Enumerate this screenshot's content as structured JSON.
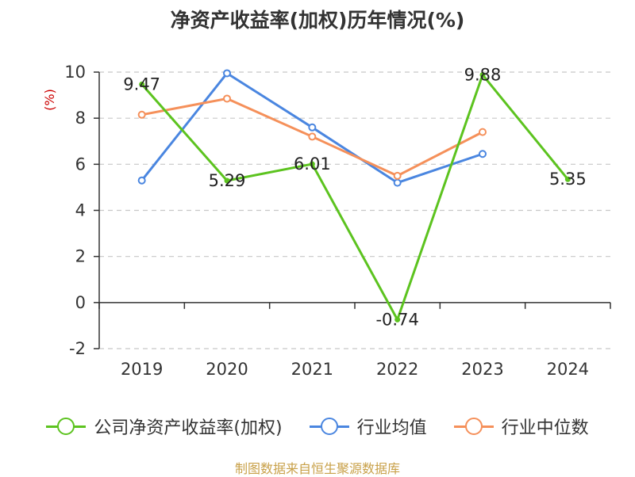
{
  "title": "净资产收益率(加权)历年情况(%)",
  "source": "制图数据来自恒生聚源数据库",
  "colors": {
    "company": "#5cc31f",
    "industry_avg": "#4a86e0",
    "industry_median": "#f5905a",
    "ylabel": "#cc0000",
    "grid": "#c8c8c8",
    "axis": "#333333"
  },
  "chart_data": {
    "type": "line",
    "title": "净资产收益率(加权)历年情况(%)",
    "xlabel": "",
    "ylabel": "(%)",
    "categories": [
      "2019",
      "2020",
      "2021",
      "2022",
      "2023",
      "2024"
    ],
    "ylim": [
      -2,
      10
    ],
    "yticks": [
      -2,
      0,
      2,
      4,
      6,
      8,
      10
    ],
    "grid": true,
    "legend_position": "bottom",
    "series": [
      {
        "name": "公司净资产收益率(加权)",
        "key": "company",
        "values": [
          9.47,
          5.29,
          6.01,
          -0.74,
          9.88,
          5.35
        ],
        "labels": [
          "9.47",
          "5.29",
          "6.01",
          "-0.74",
          "9.88",
          "5.35"
        ]
      },
      {
        "name": "行业均值",
        "key": "industry_avg",
        "values": [
          5.3,
          9.95,
          7.6,
          5.2,
          6.45,
          null
        ]
      },
      {
        "name": "行业中位数",
        "key": "industry_median",
        "values": [
          8.15,
          8.85,
          7.2,
          5.5,
          7.4,
          null
        ]
      }
    ]
  }
}
